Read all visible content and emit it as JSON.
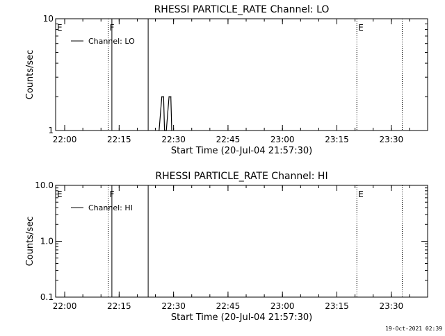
{
  "chart_data": [
    {
      "type": "line",
      "title": "RHESSI PARTICLE_RATE Channel: LO",
      "xlabel": "Start Time (20-Jul-04 21:57:30)",
      "ylabel": "Counts/sec",
      "y_scale": "log",
      "ylim": [
        1,
        10
      ],
      "xlim": [
        "21:57:30",
        "23:40:00"
      ],
      "y_tick_labels": [
        "1",
        "10"
      ],
      "x_tick_labels": [
        "22:00",
        "22:15",
        "22:30",
        "22:45",
        "23:00",
        "23:15",
        "23:30"
      ],
      "legend": {
        "position": "top-left",
        "entries": [
          "Channel: LO"
        ]
      },
      "annotations": [
        {
          "label": "E",
          "time": "21:57:30",
          "line": "none"
        },
        {
          "label": "F",
          "time": "22:12:00",
          "line": "dotted"
        },
        {
          "label": "",
          "time": "22:13:00",
          "line": "solid"
        },
        {
          "label": "",
          "time": "22:23:00",
          "line": "solid"
        },
        {
          "label": "E",
          "time": "23:20:30",
          "line": "dotted"
        },
        {
          "label": "",
          "time": "23:33:00",
          "line": "dotted"
        }
      ],
      "series": [
        {
          "name": "Channel: LO",
          "x": [
            "22:26:00",
            "22:26:45",
            "22:27:15",
            "22:27:30",
            "22:28:00",
            "22:28:45",
            "22:29:15",
            "22:29:30"
          ],
          "y": [
            1,
            2,
            2,
            1,
            1,
            2,
            2,
            1
          ]
        }
      ]
    },
    {
      "type": "line",
      "title": "RHESSI PARTICLE_RATE Channel: HI",
      "xlabel": "Start Time (20-Jul-04 21:57:30)",
      "ylabel": "Counts/sec",
      "y_scale": "log",
      "ylim": [
        0.1,
        10
      ],
      "xlim": [
        "21:57:30",
        "23:40:00"
      ],
      "y_tick_labels": [
        "0.1",
        "1.0",
        "10.0"
      ],
      "x_tick_labels": [
        "22:00",
        "22:15",
        "22:30",
        "22:45",
        "23:00",
        "23:15",
        "23:30"
      ],
      "legend": {
        "position": "top-left",
        "entries": [
          "Channel: HI"
        ]
      },
      "annotations": [
        {
          "label": "E",
          "time": "21:57:30",
          "line": "none"
        },
        {
          "label": "F",
          "time": "22:12:00",
          "line": "dotted"
        },
        {
          "label": "",
          "time": "22:13:00",
          "line": "solid"
        },
        {
          "label": "",
          "time": "22:23:00",
          "line": "solid"
        },
        {
          "label": "E",
          "time": "23:20:30",
          "line": "dotted"
        },
        {
          "label": "",
          "time": "23:33:00",
          "line": "dotted"
        }
      ],
      "series": [
        {
          "name": "Channel: HI",
          "x": [],
          "y": []
        }
      ]
    }
  ],
  "footer": {
    "timestamp": "19-Oct-2021 02:39"
  }
}
